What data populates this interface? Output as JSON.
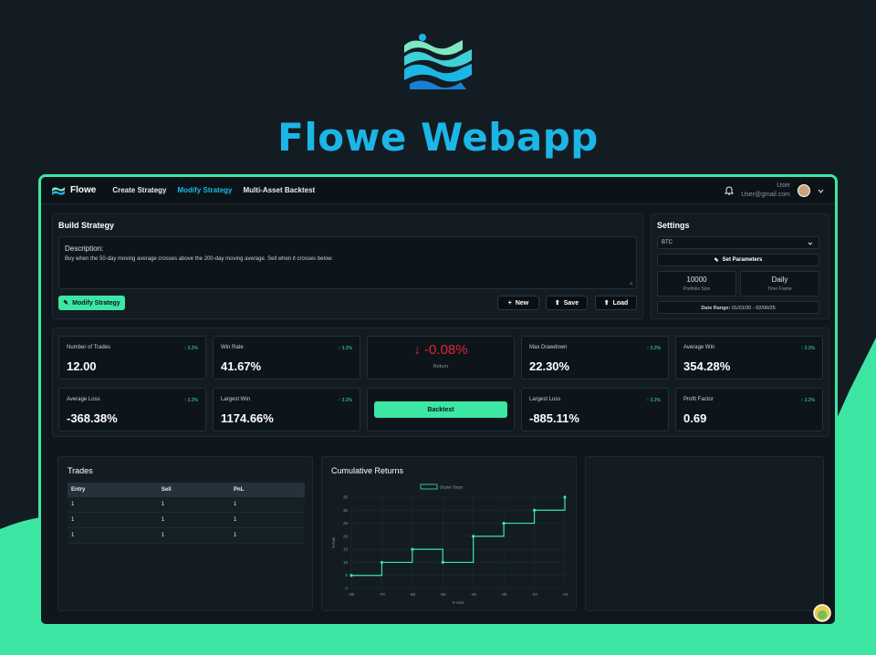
{
  "hero": {
    "title": "Flowe Webapp"
  },
  "colors": {
    "accent": "#3ee6a4",
    "brand": "#1cb6e6",
    "negative": "#e0252e"
  },
  "navbar": {
    "brand": "Flowe",
    "links": [
      {
        "label": "Create Strategy"
      },
      {
        "label": "Modify Strategy"
      },
      {
        "label": "Multi-Asset Backtest"
      }
    ],
    "user_name": "User",
    "user_email": "User@gmail.com"
  },
  "build": {
    "title": "Build Strategy",
    "description_label": "Description:",
    "description_text": "Buy when the 50-day moving average crosses above the 200-day moving average. Sell when it crosses below.",
    "modify_button": "Modify Strategy",
    "new_button": "New",
    "save_button": "Save",
    "load_button": "Load"
  },
  "settings": {
    "title": "Settings",
    "asset": "BTC",
    "set_params_button": "Set Parameters",
    "portfolio_size": "10000",
    "portfolio_size_label": "Portfolio Size",
    "time_frame": "Daily",
    "time_frame_label": "Time Frame",
    "date_range_label": "Date Range:",
    "date_range": "01/01/20 - 02/06/25"
  },
  "stats": {
    "number_of_trades": {
      "label": "Number of Trades",
      "value": "12.00",
      "delta": "3.2%"
    },
    "win_rate": {
      "label": "Win Rate",
      "value": "41.67%",
      "delta": "3.2%"
    },
    "return": {
      "label": "Return",
      "value": "-0.08%"
    },
    "max_drawdown": {
      "label": "Max Drawdown",
      "value": "22.30%",
      "delta": "3.2%"
    },
    "average_win": {
      "label": "Average Win",
      "value": "354.28%",
      "delta": "3.2%"
    },
    "average_loss": {
      "label": "Average Loss",
      "value": "-368.38%",
      "delta": "3.2%"
    },
    "largest_win": {
      "label": "Largest Win",
      "value": "1174.66%",
      "delta": "3.2%"
    },
    "backtest_button": "Backtest",
    "largest_loss": {
      "label": "Largest Loss",
      "value": "-885.11%",
      "delta": "3.2%"
    },
    "profit_factor": {
      "label": "Profit Factor",
      "value": "0.69",
      "delta": "3.2%"
    }
  },
  "trades": {
    "title": "Trades",
    "columns": [
      "Entry",
      "Sell",
      "PnL"
    ],
    "rows": [
      [
        "1",
        "1",
        "1"
      ],
      [
        "1",
        "1",
        "1"
      ],
      [
        "1",
        "1",
        "1"
      ]
    ]
  },
  "chart_data": {
    "type": "line",
    "title": "Cumulative Returns",
    "legend": "Digital Steps",
    "legend_position": "top",
    "xlabel": "X-Axis",
    "ylabel": "Y-Axis",
    "step": true,
    "grid": true,
    "xlim": [
      -80,
      -10
    ],
    "ylim": [
      0,
      35
    ],
    "xticks": [
      "-80",
      "-70",
      "-60",
      "-50",
      "-40",
      "-30",
      "-20",
      "-10"
    ],
    "yticks": [
      "0",
      "5",
      "10",
      "15",
      "20",
      "25",
      "30",
      "35"
    ],
    "series": [
      {
        "name": "Digital Steps",
        "x": [
          -80,
          -70,
          -60,
          -50,
          -40,
          -30,
          -20,
          -10
        ],
        "y": [
          5,
          10,
          15,
          10,
          20,
          25,
          30,
          35
        ]
      }
    ]
  }
}
